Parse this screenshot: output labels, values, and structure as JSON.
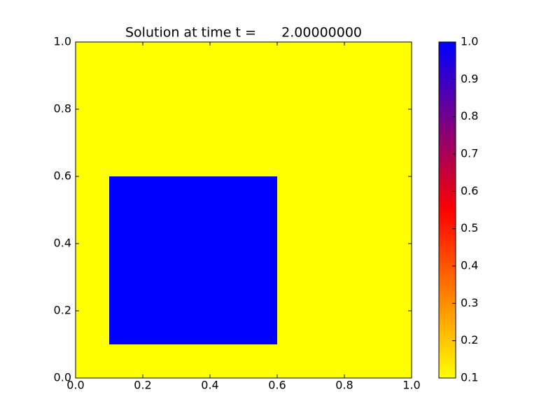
{
  "chart_data": {
    "type": "heatmap",
    "title": "Solution at time t =      2.00000000",
    "x": [
      0,
      0.1,
      0.6,
      1
    ],
    "y": [
      0,
      0.1,
      0.6,
      1
    ],
    "values": [
      [
        0.1,
        0.1,
        0.1
      ],
      [
        0.1,
        1,
        0.1
      ],
      [
        0.1,
        0.1,
        0.1
      ]
    ],
    "colormap": [
      "#ffff00",
      "#ff0000",
      "#0000ff"
    ],
    "clim": [
      0.1,
      1
    ],
    "xlim": [
      0,
      1
    ],
    "ylim": [
      0,
      1
    ],
    "xticks": [
      {
        "value": 0,
        "label": "0.0"
      },
      0.2,
      0.4,
      0.6,
      0.8,
      {
        "value": 1,
        "label": "1.0"
      }
    ],
    "yticks": [
      {
        "value": 0,
        "label": "0.0"
      },
      0.2,
      0.4,
      0.6,
      0.8,
      {
        "value": 1,
        "label": "1.0"
      }
    ],
    "cticks": [
      0.1,
      0.2,
      0.3,
      0.4,
      0.5,
      0.6,
      0.7,
      0.8,
      0.9,
      {
        "value": 1,
        "label": "1.0"
      }
    ]
  }
}
